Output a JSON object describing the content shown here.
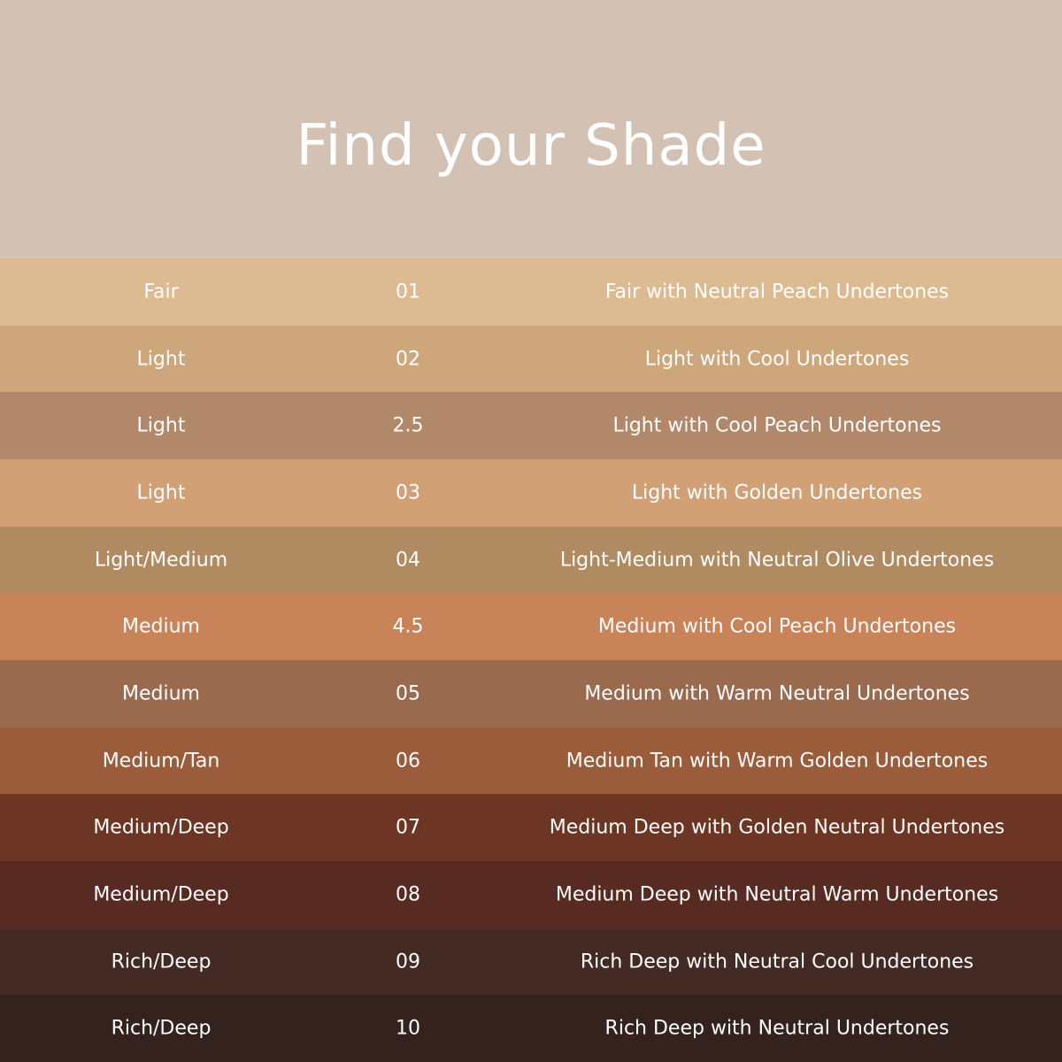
{
  "title": "Find your Shade",
  "colors": {
    "header_bg": "#d3c1b3",
    "text": "#ffffff"
  },
  "shades": [
    {
      "depth": "Fair",
      "number": "01",
      "description": "Fair with Neutral Peach Undertones",
      "color": "#dcbb93"
    },
    {
      "depth": "Light",
      "number": "02",
      "description": "Light with Cool Undertones",
      "color": "#cea67b"
    },
    {
      "depth": "Light",
      "number": "2.5",
      "description": "Light with Cool Peach Undertones",
      "color": "#b2886b"
    },
    {
      "depth": "Light",
      "number": "03",
      "description": "Light with Golden Undertones",
      "color": "#d1a074"
    },
    {
      "depth": "Light/Medium",
      "number": "04",
      "description": "Light-Medium with Neutral Olive Undertones",
      "color": "#b08a60"
    },
    {
      "depth": "Medium",
      "number": "4.5",
      "description": "Medium with Cool Peach Undertones",
      "color": "#c98358"
    },
    {
      "depth": "Medium",
      "number": "05",
      "description": "Medium with Warm Neutral Undertones",
      "color": "#9a6a4e"
    },
    {
      "depth": "Medium/Tan",
      "number": "06",
      "description": "Medium Tan with Warm Golden Undertones",
      "color": "#9a5c3a"
    },
    {
      "depth": "Medium/Deep",
      "number": "07",
      "description": "Medium Deep with Golden Neutral Undertones",
      "color": "#6d3523"
    },
    {
      "depth": "Medium/Deep",
      "number": "08",
      "description": "Medium Deep with Neutral Warm Undertones",
      "color": "#572b21"
    },
    {
      "depth": "Rich/Deep",
      "number": "09",
      "description": "Rich Deep with Neutral Cool Undertones",
      "color": "#442a24"
    },
    {
      "depth": "Rich/Deep",
      "number": "10",
      "description": "Rich Deep with Neutral Undertones",
      "color": "#34221f"
    }
  ]
}
